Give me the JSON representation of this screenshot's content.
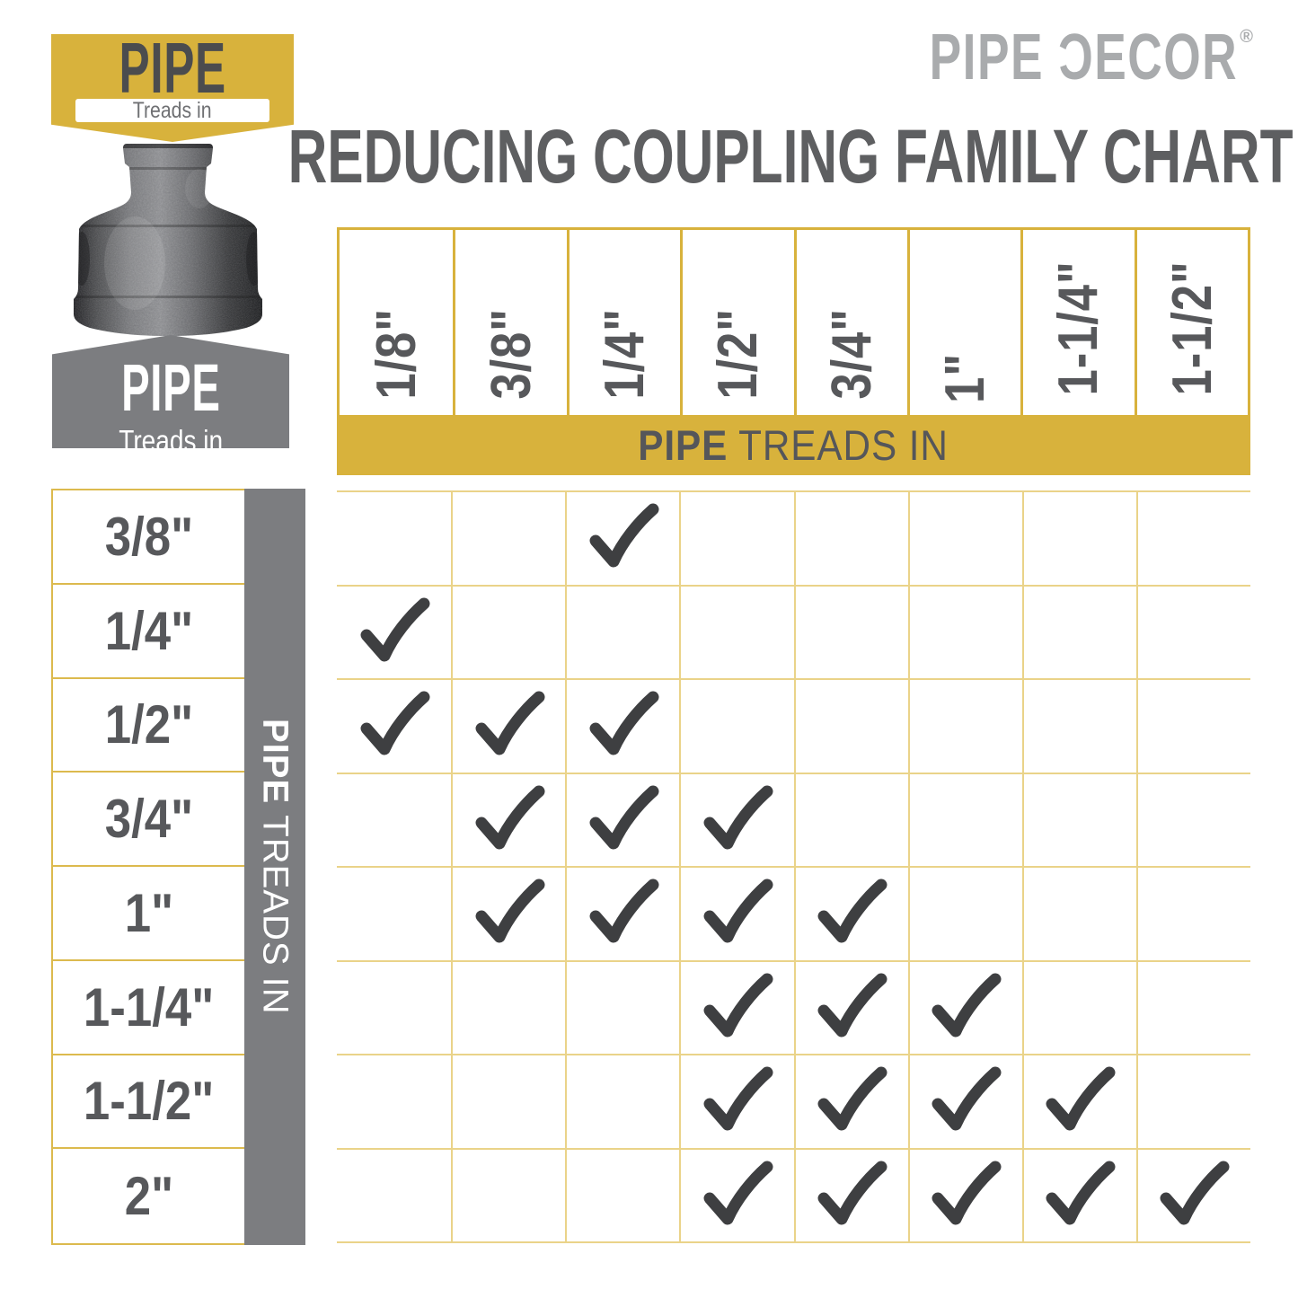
{
  "brand": {
    "logo": "PIPE ƆECOR",
    "registered": "®"
  },
  "header": {
    "title": "REDUCING COUPLING FAMILY CHART"
  },
  "badge_top": {
    "word": "PIPE",
    "sub": "Treads in"
  },
  "badge_bottom": {
    "word": "PIPE",
    "sub": "Treads in"
  },
  "bands": {
    "columns_bold": "PIPE",
    "columns_rest": "TREADS IN",
    "rows_bold": "PIPE",
    "rows_rest": "TREADS IN"
  },
  "icons": {
    "check_icon": "checkmark",
    "product_image": "black-iron-reducing-coupling"
  },
  "chart_data": {
    "type": "table",
    "title": "REDUCING COUPLING FAMILY CHART",
    "columns_axis_label": "PIPE TREADS IN",
    "rows_axis_label": "PIPE TREADS IN",
    "columns": [
      "1/8\"",
      "3/8\"",
      "1/4\"",
      "1/2\"",
      "3/4\"",
      "1\"",
      "1-1/4\"",
      "1-1/2\""
    ],
    "rows": [
      "3/8\"",
      "1/4\"",
      "1/2\"",
      "3/4\"",
      "1\"",
      "1-1/4\"",
      "1-1/2\"",
      "2\""
    ],
    "matrix": [
      [
        0,
        0,
        1,
        0,
        0,
        0,
        0,
        0
      ],
      [
        1,
        0,
        0,
        0,
        0,
        0,
        0,
        0
      ],
      [
        1,
        1,
        1,
        0,
        0,
        0,
        0,
        0
      ],
      [
        0,
        1,
        1,
        1,
        0,
        0,
        0,
        0
      ],
      [
        0,
        1,
        1,
        1,
        1,
        0,
        0,
        0
      ],
      [
        0,
        0,
        0,
        1,
        1,
        1,
        0,
        0
      ],
      [
        0,
        0,
        0,
        1,
        1,
        1,
        1,
        0
      ],
      [
        0,
        0,
        0,
        1,
        1,
        1,
        1,
        1
      ]
    ]
  },
  "colors": {
    "yellow": "#d8b23c",
    "grid_line": "#ead389",
    "table_line": "#dcba4e",
    "gray_band": "#7c7d80",
    "label_ink": "#57585b",
    "title_ink": "#5e5f61",
    "logo_gray": "#a9abad",
    "check": "#3e3f41"
  }
}
